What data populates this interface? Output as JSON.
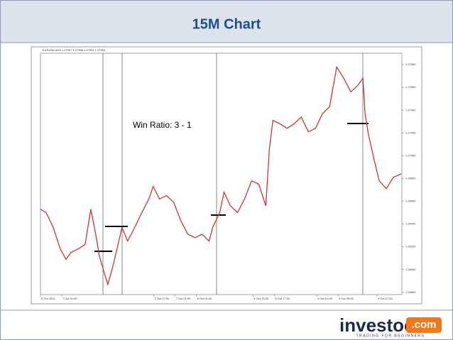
{
  "header": {
    "title": "15M Chart"
  },
  "chart_data": {
    "type": "line",
    "subtitle": "EURUSD,M15 1.27927 1.27968 1.27924 1.27954",
    "annotation": "Win Ratio: 3 - 1",
    "x": [
      0,
      8,
      18,
      28,
      36,
      43,
      53,
      63,
      71,
      78,
      83,
      90,
      95,
      101,
      108,
      115,
      123,
      133,
      143,
      153,
      159,
      168,
      178,
      188,
      198,
      208,
      218,
      228,
      238,
      243,
      253,
      259,
      268,
      278,
      288,
      298,
      308,
      318,
      323,
      328,
      338,
      348,
      358,
      368,
      378,
      388,
      398,
      408,
      418,
      428,
      438,
      448,
      455,
      458,
      463,
      471,
      478,
      488,
      498,
      509
    ],
    "series": [
      {
        "color": "#cc3333",
        "values": [
          1.2653,
          1.265,
          1.2637,
          1.2618,
          1.2609,
          1.2615,
          1.2618,
          1.2622,
          1.2653,
          1.2631,
          1.2612,
          1.2597,
          1.2587,
          1.26,
          1.2618,
          1.2637,
          1.2625,
          1.2637,
          1.265,
          1.2662,
          1.2673,
          1.2662,
          1.2665,
          1.2659,
          1.2643,
          1.2631,
          1.2628,
          1.2631,
          1.2625,
          1.2637,
          1.265,
          1.2668,
          1.2656,
          1.265,
          1.2662,
          1.2678,
          1.2675,
          1.2656,
          1.2706,
          1.2731,
          1.2728,
          1.2724,
          1.2728,
          1.2734,
          1.2721,
          1.2724,
          1.2737,
          1.2743,
          1.2778,
          1.2768,
          1.2756,
          1.2762,
          1.2768,
          1.2737,
          1.2718,
          1.2696,
          1.2678,
          1.2671,
          1.2681,
          1.2684
        ]
      }
    ],
    "xlim": [
      0,
      510
    ],
    "xticks": [
      {
        "value": 0,
        "label": "6 Oct 2014"
      },
      {
        "value": 30,
        "label": "7 Oct 01:00"
      },
      {
        "value": 160,
        "label": "7 Oct 17:00"
      },
      {
        "value": 190,
        "label": "7 Oct 21:00"
      },
      {
        "value": 220,
        "label": "8 Oct 01:00"
      },
      {
        "value": 300,
        "label": "8 Oct 13:00"
      },
      {
        "value": 330,
        "label": "8 Oct 17:00"
      },
      {
        "value": 390,
        "label": "9 Oct 01:00"
      },
      {
        "value": 420,
        "label": "9 Oct 05:00"
      },
      {
        "value": 475,
        "label": "9 Oct 17:00"
      }
    ],
    "ylim": [
      1.2578,
      1.279
    ],
    "yticks": [
      {
        "value": 1.258,
        "label": "1.25800"
      },
      {
        "value": 1.26,
        "label": "1.26000"
      },
      {
        "value": 1.262,
        "label": "1.26200"
      },
      {
        "value": 1.264,
        "label": "1.26400"
      },
      {
        "value": 1.266,
        "label": "1.26600"
      },
      {
        "value": 1.268,
        "label": "1.26800"
      },
      {
        "value": 1.27,
        "label": "1.27000"
      },
      {
        "value": 1.272,
        "label": "1.27200"
      },
      {
        "value": 1.274,
        "label": "1.27400"
      },
      {
        "value": 1.276,
        "label": "1.27600"
      },
      {
        "value": 1.278,
        "label": "1.27800"
      }
    ],
    "grid": false
  },
  "logo": {
    "name": "investoo",
    "domain": ".com",
    "tagline": "TRADING FOR BEGINNERS"
  }
}
